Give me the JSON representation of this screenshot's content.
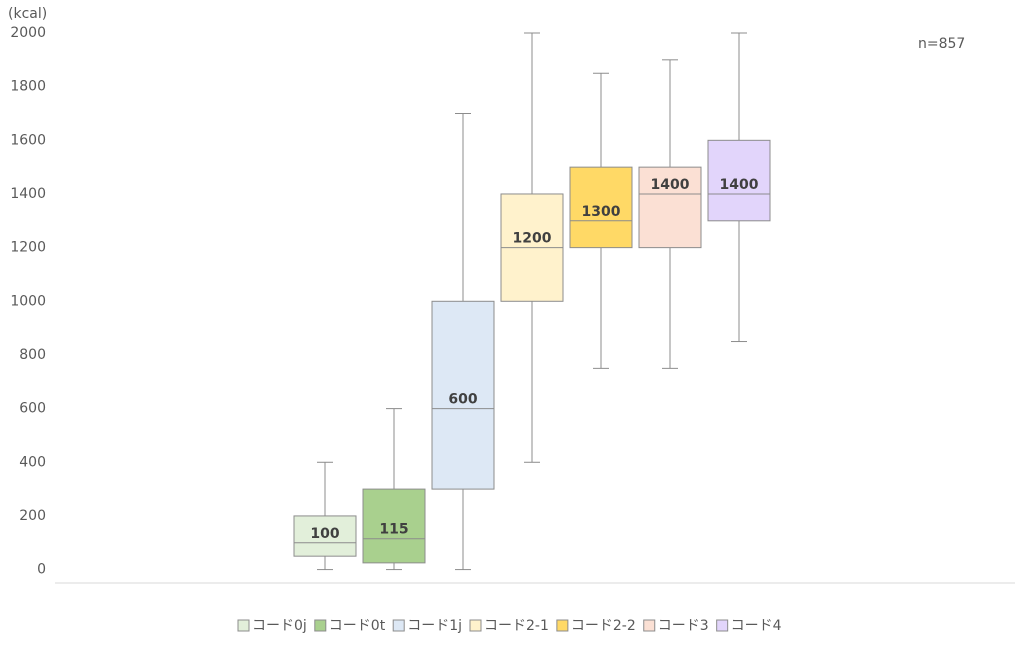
{
  "chart_data": {
    "type": "box",
    "y_label": "(kcal)",
    "annotation": "n=857",
    "ylim": [
      -50,
      2000
    ],
    "yticks": [
      0,
      200,
      400,
      600,
      800,
      1000,
      1200,
      1400,
      1600,
      1800,
      2000
    ],
    "series": [
      {
        "name": "コード0j",
        "color": "#e2efda",
        "min": 0,
        "q1": 50,
        "median": 100,
        "q3": 200,
        "max": 400
      },
      {
        "name": "コード0t",
        "color": "#a9d08e",
        "min": 0,
        "q1": 25,
        "median": 115,
        "q3": 300,
        "max": 600
      },
      {
        "name": "コード1j",
        "color": "#dde8f5",
        "min": 0,
        "q1": 300,
        "median": 600,
        "q3": 1000,
        "max": 1700
      },
      {
        "name": "コード2-1",
        "color": "#fff2cc",
        "min": 400,
        "q1": 1000,
        "median": 1200,
        "q3": 1400,
        "max": 2000
      },
      {
        "name": "コード2-2",
        "color": "#ffd966",
        "min": 750,
        "q1": 1200,
        "median": 1300,
        "q3": 1500,
        "max": 1850
      },
      {
        "name": "コード3",
        "color": "#fbe0d4",
        "min": 750,
        "q1": 1200,
        "median": 1400,
        "q3": 1500,
        "max": 1900
      },
      {
        "name": "コード4",
        "color": "#e2d5fb",
        "min": 850,
        "q1": 1300,
        "median": 1400,
        "q3": 1600,
        "max": 2000
      }
    ]
  }
}
